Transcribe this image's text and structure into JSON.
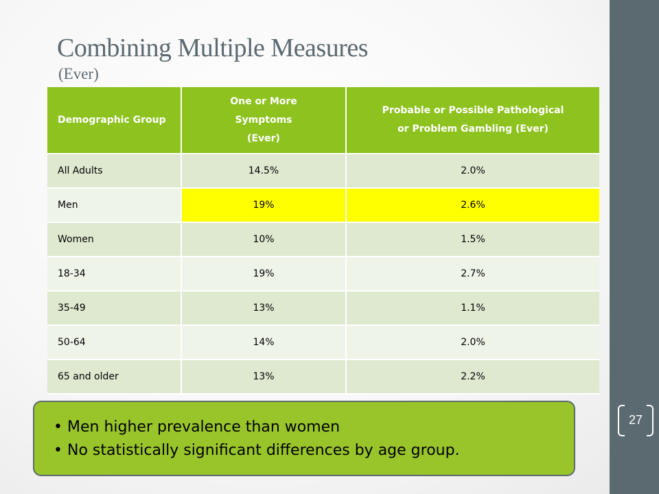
{
  "slide": {
    "title": "Combining Multiple Measures",
    "subtitle": "(Ever)",
    "page_number": "27"
  },
  "table": {
    "headers": {
      "group": "Demographic Group",
      "symptoms_line1": "One or More",
      "symptoms_line2": "Symptoms",
      "symptoms_line3": "(Ever)",
      "gambling_line1": "Probable or Possible Pathological",
      "gambling_line2": "or Problem Gambling (Ever)"
    },
    "rows": [
      {
        "group": "All Adults",
        "symptoms": "14.5%",
        "gambling": "2.0%"
      },
      {
        "group": "Men",
        "symptoms": "19%",
        "gambling": "2.6%"
      },
      {
        "group": "Women",
        "symptoms": "10%",
        "gambling": "1.5%"
      },
      {
        "group": "18-34",
        "symptoms": "19%",
        "gambling": "2.7%"
      },
      {
        "group": "35-49",
        "symptoms": "13%",
        "gambling": "1.1%"
      },
      {
        "group": "50-64",
        "symptoms": "14%",
        "gambling": "2.0%"
      },
      {
        "group": "65 and older",
        "symptoms": "13%",
        "gambling": "2.2%"
      }
    ]
  },
  "callout": {
    "bullets": [
      "Men higher prevalence than women",
      "No statistically significant differences by age group."
    ]
  },
  "colors": {
    "header_green": "#8dc21f",
    "callout_green": "#99c52a",
    "highlight_yellow": "#ffff00",
    "slate": "#5b6970"
  }
}
